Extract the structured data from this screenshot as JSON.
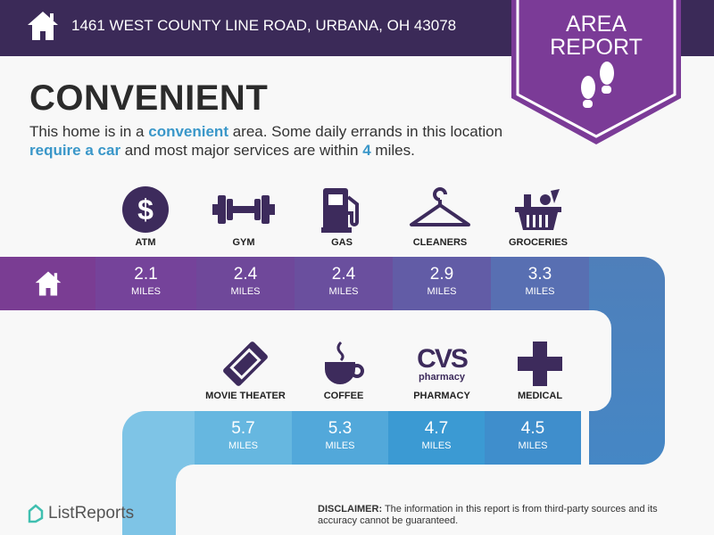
{
  "header": {
    "address": "1461 WEST COUNTY LINE ROAD, URBANA, OH 43078",
    "icon": "home-icon"
  },
  "badge": {
    "line1": "AREA",
    "line2": "REPORT",
    "icon": "footprints-icon",
    "color": "#7b3b97"
  },
  "main": {
    "title": "CONVENIENT",
    "desc": {
      "p1": "This home is in a ",
      "h1": "convenient",
      "p2": " area. Some daily errands in this location ",
      "h2": "require a car",
      "p3": " and most major services are within ",
      "h3": "4",
      "p4": " miles."
    }
  },
  "row1": [
    {
      "label": "ATM",
      "distance": "2.1",
      "unit": "MILES",
      "icon": "dollar-icon"
    },
    {
      "label": "GYM",
      "distance": "2.4",
      "unit": "MILES",
      "icon": "dumbbell-icon"
    },
    {
      "label": "GAS",
      "distance": "2.4",
      "unit": "MILES",
      "icon": "gas-pump-icon"
    },
    {
      "label": "CLEANERS",
      "distance": "2.9",
      "unit": "MILES",
      "icon": "hanger-icon"
    },
    {
      "label": "GROCERIES",
      "distance": "3.3",
      "unit": "MILES",
      "icon": "basket-icon"
    }
  ],
  "row2": [
    {
      "label": "MOVIE THEATER",
      "distance": "5.7",
      "unit": "MILES",
      "icon": "ticket-icon"
    },
    {
      "label": "COFFEE",
      "distance": "5.3",
      "unit": "MILES",
      "icon": "coffee-icon"
    },
    {
      "label": "PHARMACY",
      "distance": "4.7",
      "unit": "MILES",
      "icon": "cvs-logo",
      "logo_text": "CVS",
      "logo_sub": "pharmacy"
    },
    {
      "label": "MEDICAL",
      "distance": "4.5",
      "unit": "MILES",
      "icon": "medical-cross-icon"
    }
  ],
  "footer": {
    "brand": "ListReports",
    "disclaimer_label": "DISCLAIMER:",
    "disclaimer_text": " The information in this report is from third-party sources and its accuracy cannot be guaranteed."
  }
}
